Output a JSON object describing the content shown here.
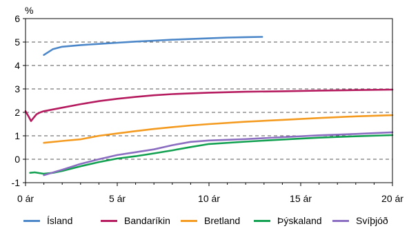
{
  "chart_data": {
    "type": "line",
    "unit_label": "%",
    "x_tick_labels": [
      "0 ár",
      "5 ár",
      "10 ár",
      "15 ár",
      "20 ár"
    ],
    "x_ticks": [
      0,
      5,
      10,
      15,
      20
    ],
    "y_ticks": [
      -1,
      0,
      1,
      2,
      3,
      4,
      5,
      6
    ],
    "y_tick_labels": [
      "-1",
      "0",
      "1",
      "2",
      "3",
      "4",
      "5",
      "6"
    ],
    "xlim": [
      0,
      20
    ],
    "ylim": [
      -1,
      6
    ],
    "grid": "dashed horizontal",
    "legend_position": "bottom",
    "series": [
      {
        "name": "Ísland",
        "color": "#4a86c8",
        "x": [
          1,
          1.2,
          1.5,
          2,
          3,
          4,
          5,
          6,
          7,
          8,
          9,
          10,
          11,
          12,
          12.9
        ],
        "y": [
          4.45,
          4.55,
          4.7,
          4.8,
          4.87,
          4.92,
          4.97,
          5.02,
          5.06,
          5.1,
          5.13,
          5.16,
          5.19,
          5.21,
          5.22
        ]
      },
      {
        "name": "Bandaríkin",
        "color": "#b5195e",
        "x": [
          0,
          0.15,
          0.3,
          0.45,
          0.6,
          0.8,
          1,
          2,
          3,
          4,
          5,
          6,
          7,
          8,
          10,
          12,
          14,
          16,
          18,
          20
        ],
        "y": [
          2.05,
          1.85,
          1.63,
          1.78,
          1.92,
          2.0,
          2.05,
          2.2,
          2.35,
          2.48,
          2.58,
          2.66,
          2.73,
          2.78,
          2.84,
          2.88,
          2.9,
          2.93,
          2.95,
          2.97
        ]
      },
      {
        "name": "Bretland",
        "color": "#f39a1f",
        "x": [
          1,
          2,
          3,
          4,
          5,
          6,
          7,
          8,
          9,
          10,
          12,
          14,
          16,
          18,
          20
        ],
        "y": [
          0.7,
          0.78,
          0.85,
          1.0,
          1.1,
          1.2,
          1.29,
          1.37,
          1.44,
          1.5,
          1.6,
          1.68,
          1.76,
          1.83,
          1.88
        ]
      },
      {
        "name": "Þýskaland",
        "color": "#10a050",
        "x": [
          0.25,
          0.5,
          1,
          1.5,
          2,
          3,
          4,
          5,
          6,
          7,
          8,
          9,
          10,
          12,
          14,
          16,
          18,
          20
        ],
        "y": [
          -0.58,
          -0.56,
          -0.62,
          -0.58,
          -0.5,
          -0.3,
          -0.12,
          0.03,
          0.13,
          0.25,
          0.38,
          0.52,
          0.65,
          0.75,
          0.84,
          0.92,
          0.98,
          1.03
        ]
      },
      {
        "name": "Svíþjóð",
        "color": "#8a6cc0",
        "x": [
          1,
          2,
          3,
          4,
          5,
          6,
          7,
          8,
          9,
          10,
          12,
          14,
          16,
          18,
          20
        ],
        "y": [
          -0.68,
          -0.45,
          -0.2,
          0.0,
          0.18,
          0.3,
          0.42,
          0.6,
          0.74,
          0.8,
          0.86,
          0.94,
          1.02,
          1.08,
          1.15
        ]
      }
    ]
  }
}
